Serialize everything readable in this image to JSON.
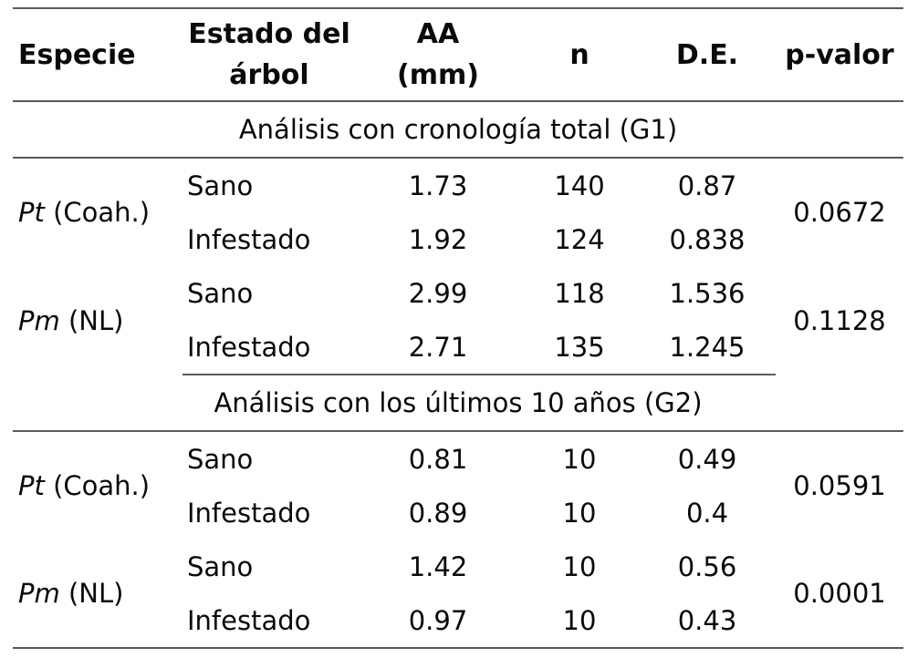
{
  "table": {
    "header": {
      "especie": "Especie",
      "estado_line1": "Estado del",
      "estado_line2": "árbol",
      "aa_line1": "AA",
      "aa_line2": "(mm)",
      "n": "n",
      "de": "D.E.",
      "pvalor": "p-valor"
    },
    "sections": [
      {
        "title": "Análisis con cronología total (G1)",
        "groups": [
          {
            "species_italic": "Pt",
            "species_rest": " (Coah.)",
            "p_valor": "0.0672",
            "rows": [
              {
                "estado": "Sano",
                "aa": "1.73",
                "n": "140",
                "de": "0.87"
              },
              {
                "estado": "Infestado",
                "aa": "1.92",
                "n": "124",
                "de": "0.838"
              }
            ]
          },
          {
            "species_italic": "Pm",
            "species_rest": " (NL)",
            "p_valor": "0.1128",
            "rows": [
              {
                "estado": "Sano",
                "aa": "2.99",
                "n": "118",
                "de": "1.536"
              },
              {
                "estado": "Infestado",
                "aa": "2.71",
                "n": "135",
                "de": "1.245"
              }
            ]
          }
        ]
      },
      {
        "title": "Análisis con los últimos 10 años (G2)",
        "groups": [
          {
            "species_italic": "Pt",
            "species_rest": " (Coah.)",
            "p_valor": "0.0591",
            "rows": [
              {
                "estado": "Sano",
                "aa": "0.81",
                "n": "10",
                "de": "0.49"
              },
              {
                "estado": "Infestado",
                "aa": "0.89",
                "n": "10",
                "de": "0.4"
              }
            ]
          },
          {
            "species_italic": "Pm",
            "species_rest": " (NL)",
            "p_valor": "0.0001",
            "rows": [
              {
                "estado": "Sano",
                "aa": "1.42",
                "n": "10",
                "de": "0.56"
              },
              {
                "estado": "Infestado",
                "aa": "0.97",
                "n": "10",
                "de": "0.43"
              }
            ]
          }
        ]
      }
    ]
  },
  "colors": {
    "rule": "#5a5a5a",
    "text": "#0a0a0a",
    "background": "#ffffff"
  }
}
